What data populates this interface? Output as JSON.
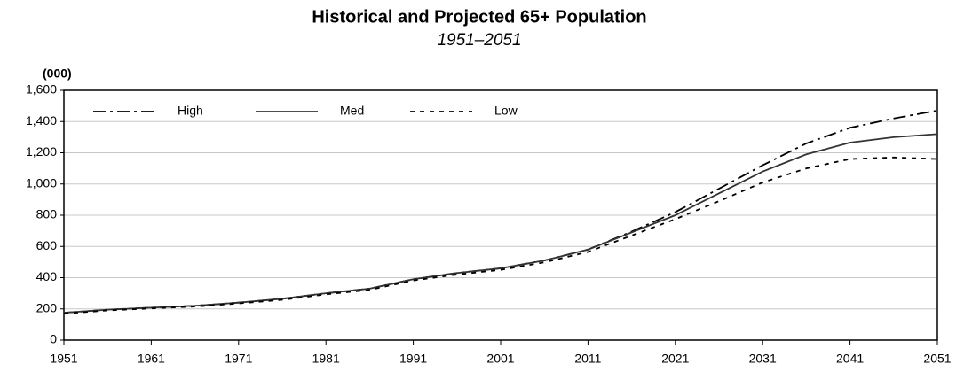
{
  "chart_data": {
    "type": "line",
    "title": "Historical and Projected 65+ Population",
    "subtitle": "1951–2051",
    "ylabel": "(000)",
    "x": [
      1951,
      1956,
      1961,
      1966,
      1971,
      1976,
      1981,
      1986,
      1991,
      1996,
      2001,
      2006,
      2011,
      2016,
      2021,
      2026,
      2031,
      2036,
      2041,
      2046,
      2051
    ],
    "series": [
      {
        "name": "High",
        "color": "#000000",
        "dash": "14 5 3 5",
        "values": [
          175,
          195,
          208,
          220,
          240,
          265,
          300,
          330,
          390,
          430,
          460,
          510,
          580,
          695,
          820,
          970,
          1120,
          1260,
          1360,
          1420,
          1470
        ]
      },
      {
        "name": "Med",
        "color": "#333333",
        "dash": "none",
        "values": [
          175,
          195,
          208,
          220,
          240,
          265,
          300,
          330,
          390,
          430,
          460,
          510,
          580,
          690,
          800,
          940,
          1080,
          1190,
          1265,
          1300,
          1320
        ]
      },
      {
        "name": "Low",
        "color": "#000000",
        "dash": "5 6",
        "values": [
          170,
          190,
          203,
          215,
          235,
          258,
          293,
          322,
          382,
          420,
          450,
          498,
          565,
          670,
          775,
          890,
          1010,
          1100,
          1160,
          1170,
          1160
        ]
      }
    ],
    "xlim": [
      1951,
      2051
    ],
    "xticks": [
      1951,
      1961,
      1971,
      1981,
      1991,
      2001,
      2011,
      2021,
      2031,
      2041,
      2051
    ],
    "ylim": [
      0,
      1600
    ],
    "yticks": [
      0,
      {
        "value": 200,
        "label": "200"
      },
      {
        "value": 400,
        "label": "400"
      },
      {
        "value": 600,
        "label": "600"
      },
      {
        "value": 800,
        "label": "800"
      },
      {
        "value": 1000,
        "label": "1,000"
      },
      {
        "value": 1200,
        "label": "1,200"
      },
      {
        "value": 1400,
        "label": "1,400"
      },
      {
        "value": 1600,
        "label": "1,600"
      }
    ],
    "grid": true,
    "legend": "top-left"
  }
}
